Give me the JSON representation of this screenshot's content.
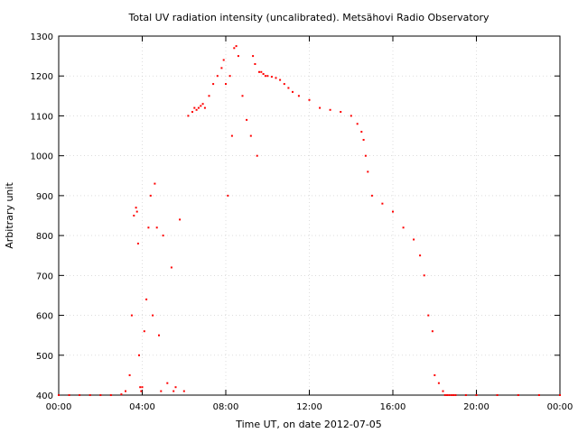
{
  "chart_data": {
    "type": "scatter",
    "title": "Total UV radiation intensity (uncalibrated). Metsähovi Radio Observatory",
    "xlabel": "Time UT, on date 2012-07-05",
    "ylabel": "Arbitrary unit",
    "xlim": [
      0,
      24
    ],
    "ylim": [
      400,
      1300
    ],
    "x_unit": "hours UT",
    "x_tick_labels": [
      "00:00",
      "04:00",
      "08:00",
      "12:00",
      "16:00",
      "20:00",
      "00:00"
    ],
    "y_tick_labels": [
      "400",
      "500",
      "600",
      "700",
      "800",
      "900",
      "1000",
      "1100",
      "1200",
      "1300"
    ],
    "grid": true,
    "grid_style": "dotted",
    "marker_color": "#ff0000",
    "series": [
      {
        "x": [
          0.0,
          0.5,
          1.0,
          1.5,
          2.0,
          2.5,
          3.0,
          3.2,
          3.4,
          3.5,
          3.6,
          3.7,
          3.75,
          3.8,
          3.85,
          3.9,
          3.95,
          4.0,
          4.1,
          4.2,
          4.3,
          4.4,
          4.5,
          4.6,
          4.7,
          4.8,
          4.9,
          5.0,
          5.2,
          5.4,
          5.5,
          5.6,
          5.8,
          6.0,
          6.2,
          6.4,
          6.5,
          6.6,
          6.7,
          6.8,
          6.9,
          7.0,
          7.2,
          7.4,
          7.6,
          7.8,
          7.9,
          8.0,
          8.1,
          8.2,
          8.3,
          8.4,
          8.5,
          8.6,
          8.8,
          9.0,
          9.2,
          9.3,
          9.4,
          9.5,
          9.6,
          9.7,
          9.8,
          9.9,
          10.0,
          10.2,
          10.4,
          10.6,
          10.8,
          11.0,
          11.2,
          11.5,
          12.0,
          12.5,
          13.0,
          13.5,
          14.0,
          14.3,
          14.5,
          14.6,
          14.7,
          14.8,
          15.0,
          15.5,
          16.0,
          16.5,
          17.0,
          17.3,
          17.5,
          17.7,
          17.9,
          18.0,
          18.2,
          18.4,
          18.5,
          18.6,
          18.7,
          18.8,
          18.9,
          19.0,
          19.5,
          20.0,
          21.0,
          22.0,
          23.0,
          24.0
        ],
        "y": [
          400,
          400,
          400,
          400,
          400,
          400,
          402,
          410,
          450,
          600,
          850,
          870,
          860,
          780,
          500,
          420,
          410,
          420,
          560,
          640,
          820,
          900,
          600,
          930,
          820,
          550,
          410,
          800,
          430,
          720,
          410,
          420,
          840,
          410,
          1100,
          1110,
          1120,
          1115,
          1120,
          1125,
          1130,
          1120,
          1150,
          1180,
          1200,
          1220,
          1240,
          1180,
          900,
          1200,
          1050,
          1270,
          1275,
          1250,
          1150,
          1090,
          1050,
          1250,
          1230,
          1000,
          1210,
          1210,
          1205,
          1200,
          1200,
          1198,
          1195,
          1190,
          1180,
          1170,
          1160,
          1150,
          1140,
          1120,
          1115,
          1110,
          1100,
          1080,
          1060,
          1040,
          1000,
          960,
          900,
          880,
          860,
          820,
          790,
          750,
          700,
          600,
          560,
          450,
          430,
          410,
          400,
          400,
          400,
          400,
          400,
          400,
          400,
          400,
          400,
          400,
          400,
          400
        ]
      }
    ]
  }
}
